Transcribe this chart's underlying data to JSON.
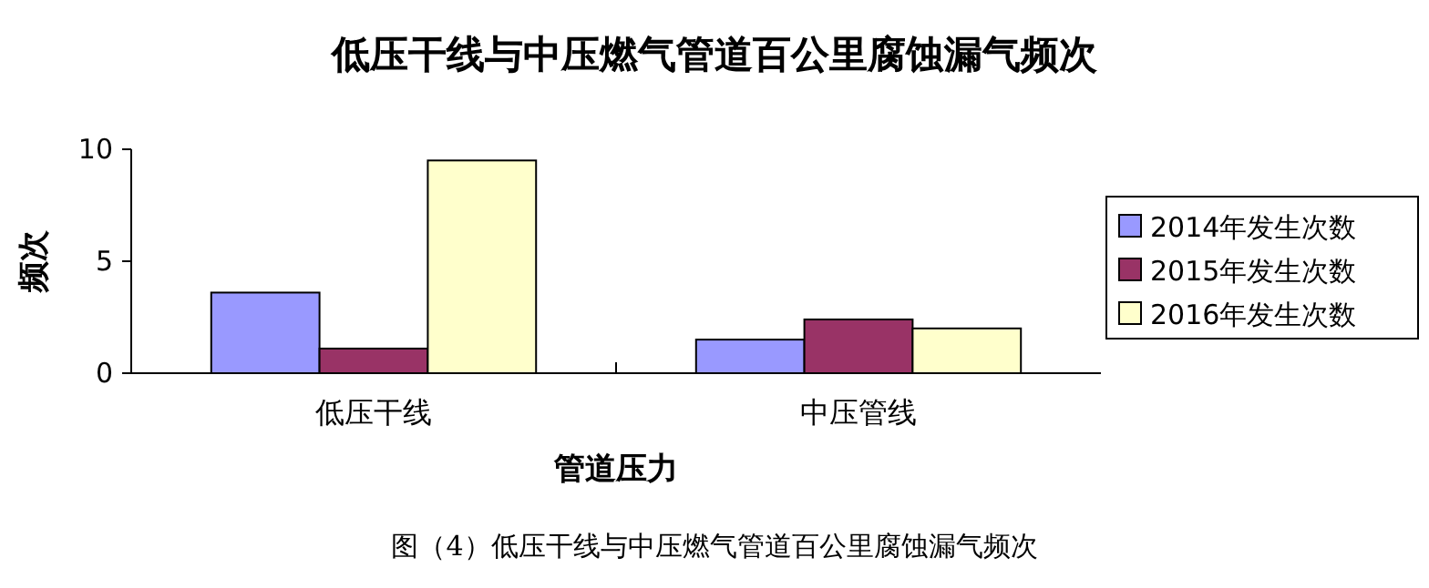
{
  "chart_data": {
    "type": "bar",
    "title": "低压干线与中压燃气管道百公里腐蚀漏气频次",
    "xlabel": "管道压力",
    "ylabel": "频次",
    "categories": [
      "低压干线",
      "中压管线"
    ],
    "series": [
      {
        "name": "2014年发生次数",
        "color": "#9999ff",
        "values": [
          3.6,
          1.5
        ]
      },
      {
        "name": "2015年发生次数",
        "color": "#993366",
        "values": [
          1.1,
          2.4
        ]
      },
      {
        "name": "2016年发生次数",
        "color": "#ffffcc",
        "values": [
          9.5,
          2.0
        ]
      }
    ],
    "ylim": [
      0,
      10
    ],
    "yticks": [
      0,
      5,
      10
    ],
    "grid": false,
    "legend": "right",
    "annotations": [
      "图（4）低压干线与中压燃气管道百公里腐蚀漏气频次"
    ]
  }
}
